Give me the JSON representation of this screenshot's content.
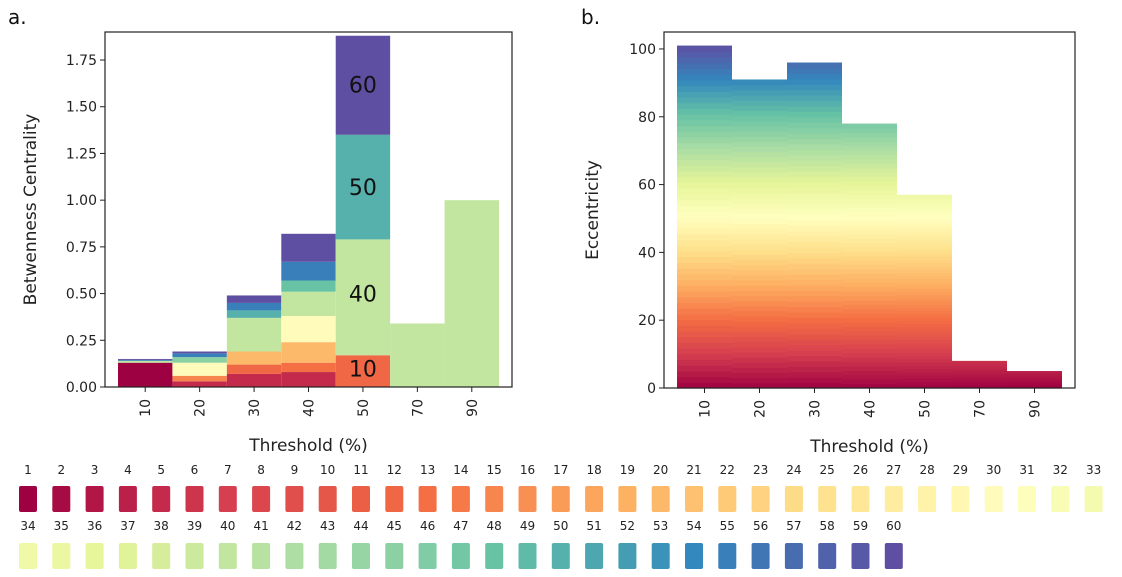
{
  "chart_data": [
    {
      "panel_label": "a.",
      "type": "bar",
      "stacked": true,
      "xlabel": "Threshold (%)",
      "ylabel": "Betwenness Centrality",
      "categories": [
        "10",
        "20",
        "30",
        "40",
        "50",
        "70",
        "90"
      ],
      "ylim": [
        0,
        1.9
      ],
      "yticks": [
        "0.00",
        "0.25",
        "0.50",
        "0.75",
        "1.00",
        "1.25",
        "1.50",
        "1.75"
      ],
      "grid": false,
      "stack_segments": [
        [
          [
            1,
            0.13
          ],
          [
            40,
            0.01
          ],
          [
            55,
            0.005
          ],
          [
            60,
            0.005
          ]
        ],
        [
          [
            5,
            0.03
          ],
          [
            15,
            0.03
          ],
          [
            30,
            0.07
          ],
          [
            45,
            0.03
          ],
          [
            55,
            0.02
          ],
          [
            60,
            0.01
          ]
        ],
        [
          [
            5,
            0.07
          ],
          [
            12,
            0.05
          ],
          [
            20,
            0.07
          ],
          [
            40,
            0.18
          ],
          [
            50,
            0.04
          ],
          [
            55,
            0.04
          ],
          [
            60,
            0.04
          ]
        ],
        [
          [
            5,
            0.08
          ],
          [
            13,
            0.05
          ],
          [
            20,
            0.11
          ],
          [
            30,
            0.14
          ],
          [
            40,
            0.13
          ],
          [
            48,
            0.06
          ],
          [
            55,
            0.1
          ],
          [
            60,
            0.15
          ]
        ],
        [
          [
            12,
            0.17
          ],
          [
            40,
            0.62
          ],
          [
            50,
            0.56
          ],
          [
            60,
            0.53
          ]
        ],
        [
          [
            40,
            0.34
          ]
        ],
        [
          [
            40,
            1.0
          ]
        ]
      ],
      "annotations": [
        {
          "category": "50",
          "y": 1.62,
          "text": "60"
        },
        {
          "category": "50",
          "y": 1.07,
          "text": "50"
        },
        {
          "category": "50",
          "y": 0.5,
          "text": "40"
        },
        {
          "category": "50",
          "y": 0.1,
          "text": "10"
        }
      ]
    },
    {
      "panel_label": "b.",
      "type": "bar",
      "stacked": true,
      "xlabel": "Threshold (%)",
      "ylabel": "Eccentricity",
      "categories": [
        "10",
        "20",
        "30",
        "40",
        "50",
        "70",
        "90"
      ],
      "ylim": [
        0,
        105
      ],
      "yticks": [
        "0",
        "20",
        "40",
        "60",
        "80",
        "100"
      ],
      "grid": false,
      "totals": [
        101,
        91,
        96,
        78,
        57,
        8,
        5
      ]
    }
  ],
  "legend": {
    "row1": [
      "1",
      "2",
      "3",
      "4",
      "5",
      "6",
      "7",
      "8",
      "9",
      "10",
      "11",
      "12",
      "13",
      "14",
      "15",
      "16",
      "17",
      "18",
      "19",
      "20",
      "21",
      "22",
      "23",
      "24",
      "25",
      "26",
      "27",
      "28",
      "29",
      "30",
      "31",
      "32",
      "33"
    ],
    "row2": [
      "34",
      "35",
      "36",
      "37",
      "38",
      "39",
      "40",
      "41",
      "42",
      "43",
      "44",
      "45",
      "46",
      "47",
      "48",
      "49",
      "50",
      "51",
      "52",
      "53",
      "54",
      "55",
      "56",
      "57",
      "58",
      "59",
      "60"
    ]
  },
  "colors": {
    "palette_stops": [
      "#9e0142",
      "#d53e4f",
      "#f46d43",
      "#fdae61",
      "#fee08b",
      "#ffffbf",
      "#e6f598",
      "#abdda4",
      "#66c2a5",
      "#3288bd",
      "#5e4fa2"
    ],
    "axis": "#222222",
    "background": "#ffffff"
  }
}
